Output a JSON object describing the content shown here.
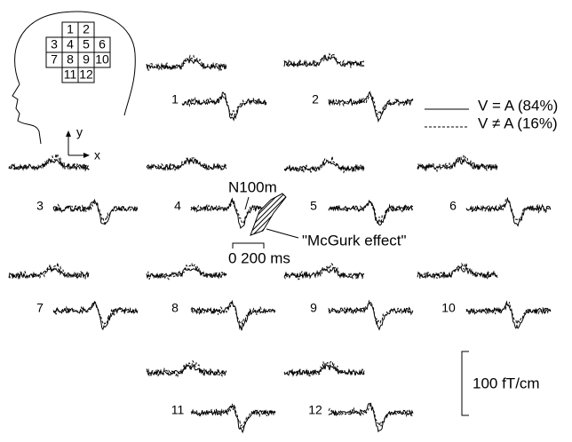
{
  "head_grid": {
    "cells": [
      "1",
      "2",
      "3",
      "4",
      "5",
      "6",
      "7",
      "8",
      "9",
      "10",
      "11",
      "12"
    ],
    "y_axis": "y",
    "x_axis": "x"
  },
  "legend": [
    "V = A (84%)",
    "V ≠ A (16%)"
  ],
  "channels": [
    "1",
    "2",
    "3",
    "4",
    "5",
    "6",
    "7",
    "8",
    "9",
    "10",
    "11",
    "12"
  ],
  "annotations": {
    "peak": "N100m",
    "effect": "\"McGurk effect\""
  },
  "time_scale": "0 200 ms",
  "amplitude_scale": "100 fT/cm"
}
